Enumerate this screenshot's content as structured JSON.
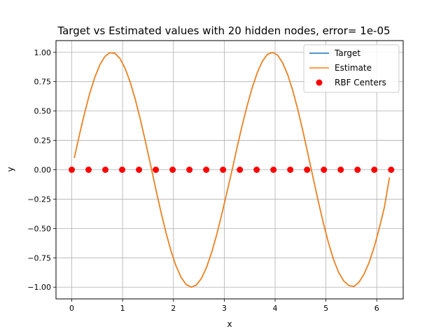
{
  "chart_data": {
    "type": "line",
    "title": "Target vs Estimated values with 20 hidden nodes, error= 1e-05",
    "xlabel": "x",
    "ylabel": "y",
    "xlim": [
      -0.31,
      6.52
    ],
    "ylim": [
      -1.1,
      1.1
    ],
    "xticks": [
      0,
      1,
      2,
      3,
      4,
      5,
      6
    ],
    "yticks": [
      -1.0,
      -0.75,
      -0.5,
      -0.25,
      0.0,
      0.25,
      0.5,
      0.75,
      1.0
    ],
    "ytick_labels": [
      "−1.00",
      "−0.75",
      "−0.50",
      "−0.25",
      "0.00",
      "0.25",
      "0.50",
      "0.75",
      "1.00"
    ],
    "xtick_labels": [
      "0",
      "1",
      "2",
      "3",
      "4",
      "5",
      "6"
    ],
    "grid": true,
    "legend_position": "top-right",
    "x": [
      0.05,
      0.15,
      0.25,
      0.35,
      0.45,
      0.55,
      0.65,
      0.75,
      0.85,
      0.95,
      1.05,
      1.15,
      1.25,
      1.35,
      1.45,
      1.55,
      1.65,
      1.75,
      1.85,
      1.95,
      2.05,
      2.15,
      2.25,
      2.35,
      2.45,
      2.55,
      2.65,
      2.75,
      2.85,
      2.95,
      3.05,
      3.15,
      3.25,
      3.35,
      3.45,
      3.55,
      3.65,
      3.75,
      3.85,
      3.95,
      4.05,
      4.15,
      4.25,
      4.35,
      4.45,
      4.55,
      4.65,
      4.75,
      4.85,
      4.95,
      5.05,
      5.15,
      5.25,
      5.35,
      5.45,
      5.55,
      5.65,
      5.75,
      5.85,
      5.95,
      6.05,
      6.15,
      6.25
    ],
    "series": [
      {
        "name": "Target",
        "color": "#1f77b4",
        "values": [
          0.0998,
          0.2955,
          0.4794,
          0.6442,
          0.7833,
          0.8912,
          0.9636,
          0.9975,
          0.9917,
          0.9463,
          0.8632,
          0.7457,
          0.5985,
          0.4274,
          0.2392,
          0.0416,
          -0.1577,
          -0.3508,
          -0.5298,
          -0.6878,
          -0.8183,
          -0.9162,
          -0.9775,
          -0.9999,
          -0.9825,
          -0.926,
          -0.833,
          -0.7074,
          -0.555,
          -0.3821,
          -0.1965,
          -0.01,
          0.1865,
          0.3738,
          0.5442,
          0.699,
          0.8276,
          0.9243,
          0.9833,
          0.9996,
          0.9759,
          0.9097,
          0.807,
          0.6706,
          0.5073,
          0.3231,
          0.1263,
          -0.0727,
          -0.2693,
          -0.4554,
          -0.623,
          -0.7647,
          -0.8745,
          -0.947,
          -0.9863,
          -0.9947,
          -0.9581,
          -0.8886,
          -0.7892,
          -0.6569,
          -0.4971,
          -0.3203,
          -0.066
        ]
      },
      {
        "name": "Estimate",
        "color": "#ff7f0e",
        "values": [
          0.0998,
          0.2955,
          0.4794,
          0.6442,
          0.7833,
          0.8912,
          0.9636,
          0.9975,
          0.9917,
          0.9463,
          0.8632,
          0.7457,
          0.5985,
          0.4274,
          0.2392,
          0.0416,
          -0.1577,
          -0.3508,
          -0.5298,
          -0.6878,
          -0.8183,
          -0.9162,
          -0.9775,
          -0.9999,
          -0.9825,
          -0.926,
          -0.833,
          -0.7074,
          -0.555,
          -0.3821,
          -0.1965,
          -0.01,
          0.1865,
          0.3738,
          0.5442,
          0.699,
          0.8276,
          0.9243,
          0.9833,
          0.9996,
          0.9759,
          0.9097,
          0.807,
          0.6706,
          0.5073,
          0.3231,
          0.1263,
          -0.0727,
          -0.2693,
          -0.4554,
          -0.623,
          -0.7647,
          -0.8745,
          -0.947,
          -0.9863,
          -0.9947,
          -0.9581,
          -0.8886,
          -0.7892,
          -0.6569,
          -0.4971,
          -0.3203,
          -0.066
        ]
      }
    ],
    "scatter": {
      "name": "RBF Centers",
      "color": "#ff0000",
      "x": [
        0.0,
        0.3307,
        0.6614,
        0.9921,
        1.3228,
        1.6535,
        1.9842,
        2.3149,
        2.6456,
        2.9763,
        3.3069,
        3.6376,
        3.9683,
        4.299,
        4.6297,
        4.9604,
        5.2911,
        5.6218,
        5.9525,
        6.2832
      ],
      "y": [
        0,
        0,
        0,
        0,
        0,
        0,
        0,
        0,
        0,
        0,
        0,
        0,
        0,
        0,
        0,
        0,
        0,
        0,
        0,
        0
      ]
    }
  }
}
